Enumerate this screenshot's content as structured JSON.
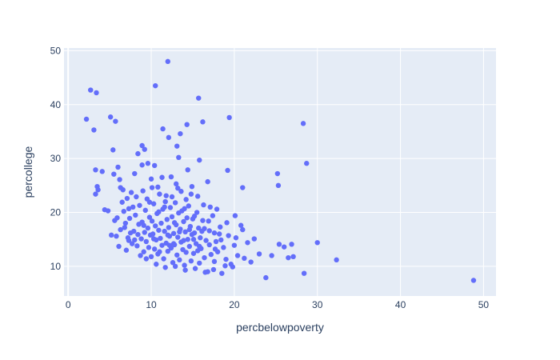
{
  "colors": {
    "background": "#ffffff",
    "plot_background": "#e5ecf6",
    "grid": "#ffffff",
    "marker": "#636efa",
    "text": "#2a3f5f"
  },
  "chart_data": {
    "type": "scatter",
    "xlabel": "percbelowpoverty",
    "ylabel": "percollege",
    "xlim": [
      -0.5,
      51.5
    ],
    "ylim": [
      4.5,
      50.5
    ],
    "xticks": [
      0,
      10,
      20,
      30,
      40,
      50
    ],
    "yticks": [
      10,
      20,
      30,
      40,
      50
    ],
    "grid": true,
    "legend": false,
    "series": [
      {
        "points": [
          [
            2.2,
            37.3
          ],
          [
            2.7,
            42.7
          ],
          [
            3.1,
            35.3
          ],
          [
            3.4,
            42.2
          ],
          [
            3.3,
            27.9
          ],
          [
            3.3,
            23.4
          ],
          [
            3.5,
            24.8
          ],
          [
            3.6,
            24.2
          ],
          [
            4.1,
            27.6
          ],
          [
            4.4,
            20.5
          ],
          [
            5.1,
            37.7
          ],
          [
            5.7,
            36.9
          ],
          [
            5.4,
            31.6
          ],
          [
            5.5,
            27.1
          ],
          [
            6.0,
            28.4
          ],
          [
            6.2,
            26.1
          ],
          [
            6.3,
            24.6
          ],
          [
            6.5,
            21.9
          ],
          [
            6.6,
            24.2
          ],
          [
            7.1,
            22.6
          ],
          [
            7.3,
            20.7
          ],
          [
            7.6,
            23.7
          ],
          [
            8.0,
            27.2
          ],
          [
            8.4,
            30.9
          ],
          [
            8.9,
            32.4
          ],
          [
            9.2,
            31.7
          ],
          [
            8.9,
            28.8
          ],
          [
            9.6,
            29.1
          ],
          [
            10.1,
            24.6
          ],
          [
            10.4,
            28.7
          ],
          [
            10.5,
            43.5
          ],
          [
            12.0,
            48.0
          ],
          [
            11.4,
            35.5
          ],
          [
            12.1,
            33.9
          ],
          [
            13.1,
            32.3
          ],
          [
            13.5,
            34.6
          ],
          [
            14.3,
            36.3
          ],
          [
            15.7,
            41.2
          ],
          [
            16.2,
            36.8
          ],
          [
            19.4,
            37.6
          ],
          [
            12.4,
            26.6
          ],
          [
            13.3,
            30.2
          ],
          [
            14.4,
            27.9
          ],
          [
            15.8,
            29.7
          ],
          [
            13.2,
            24.5
          ],
          [
            14.8,
            23.4
          ],
          [
            16.8,
            25.7
          ],
          [
            19.2,
            27.8
          ],
          [
            21.0,
            24.6
          ],
          [
            25.2,
            27.2
          ],
          [
            25.3,
            25.0
          ],
          [
            28.3,
            36.5
          ],
          [
            28.7,
            29.1
          ],
          [
            20.1,
            19.4
          ],
          [
            22.4,
            15.1
          ],
          [
            24.5,
            12.0
          ],
          [
            25.4,
            14.1
          ],
          [
            26.0,
            13.6
          ],
          [
            26.9,
            14.1
          ],
          [
            27.1,
            11.8
          ],
          [
            26.5,
            11.6
          ],
          [
            28.4,
            8.7
          ],
          [
            30.0,
            14.4
          ],
          [
            32.3,
            11.2
          ],
          [
            23.8,
            7.9
          ],
          [
            48.8,
            7.4
          ],
          [
            4.8,
            20.3
          ],
          [
            5.2,
            15.8
          ],
          [
            5.6,
            18.5
          ],
          [
            5.8,
            15.6
          ],
          [
            6.3,
            16.8
          ],
          [
            6.8,
            17.2
          ],
          [
            7.2,
            15.3
          ],
          [
            7.4,
            18.9
          ],
          [
            7.7,
            14.2
          ],
          [
            7.9,
            16.5
          ],
          [
            8.1,
            19.5
          ],
          [
            8.3,
            13.8
          ],
          [
            8.5,
            17.8
          ],
          [
            8.6,
            21.3
          ],
          [
            8.8,
            15.1
          ],
          [
            8.9,
            18.2
          ],
          [
            9.1,
            12.7
          ],
          [
            9.2,
            16.3
          ],
          [
            9.3,
            20.4
          ],
          [
            9.4,
            14.6
          ],
          [
            9.5,
            22.5
          ],
          [
            9.6,
            17.1
          ],
          [
            9.7,
            13.5
          ],
          [
            9.8,
            19.1
          ],
          [
            9.9,
            15.8
          ],
          [
            10.0,
            11.8
          ],
          [
            10.1,
            18.4
          ],
          [
            10.2,
            16.0
          ],
          [
            10.3,
            21.6
          ],
          [
            10.4,
            13.2
          ],
          [
            10.5,
            17.5
          ],
          [
            10.6,
            14.9
          ],
          [
            10.7,
            19.8
          ],
          [
            10.8,
            12.3
          ],
          [
            10.9,
            16.7
          ],
          [
            11.0,
            23.4
          ],
          [
            11.1,
            15.2
          ],
          [
            11.2,
            18.0
          ],
          [
            11.3,
            13.9
          ],
          [
            11.4,
            20.6
          ],
          [
            11.5,
            11.4
          ],
          [
            11.6,
            16.5
          ],
          [
            11.7,
            22.0
          ],
          [
            11.8,
            14.3
          ],
          [
            11.9,
            18.7
          ],
          [
            12.0,
            12.8
          ],
          [
            12.1,
            17.2
          ],
          [
            12.2,
            15.6
          ],
          [
            12.3,
            20.9
          ],
          [
            12.4,
            13.4
          ],
          [
            12.5,
            19.2
          ],
          [
            12.6,
            10.7
          ],
          [
            12.7,
            16.1
          ],
          [
            12.8,
            14.0
          ],
          [
            12.9,
            21.8
          ],
          [
            13.0,
            17.7
          ],
          [
            13.1,
            12.1
          ],
          [
            13.2,
            15.4
          ],
          [
            13.3,
            19.9
          ],
          [
            13.4,
            11.2
          ],
          [
            13.5,
            16.9
          ],
          [
            13.6,
            14.5
          ],
          [
            13.7,
            20.3
          ],
          [
            13.8,
            13.1
          ],
          [
            13.9,
            18.3
          ],
          [
            14.0,
            10.2
          ],
          [
            14.1,
            16.4
          ],
          [
            14.2,
            12.6
          ],
          [
            14.3,
            19.0
          ],
          [
            14.4,
            15.0
          ],
          [
            14.5,
            21.2
          ],
          [
            14.6,
            13.7
          ],
          [
            14.7,
            17.4
          ],
          [
            14.8,
            11.0
          ],
          [
            14.9,
            15.9
          ],
          [
            15.0,
            18.8
          ],
          [
            15.1,
            12.4
          ],
          [
            15.2,
            16.2
          ],
          [
            15.3,
            9.6
          ],
          [
            15.4,
            14.2
          ],
          [
            15.5,
            20.0
          ],
          [
            15.6,
            12.9
          ],
          [
            15.7,
            17.1
          ],
          [
            15.8,
            10.6
          ],
          [
            15.9,
            15.3
          ],
          [
            16.0,
            13.3
          ],
          [
            16.2,
            18.5
          ],
          [
            16.4,
            11.6
          ],
          [
            16.6,
            14.8
          ],
          [
            16.8,
            9.0
          ],
          [
            17.0,
            16.6
          ],
          [
            17.2,
            12.2
          ],
          [
            17.4,
            19.4
          ],
          [
            17.6,
            10.9
          ],
          [
            17.8,
            14.6
          ],
          [
            18.0,
            12.7
          ],
          [
            18.2,
            16.0
          ],
          [
            18.5,
            8.7
          ],
          [
            18.7,
            13.5
          ],
          [
            19.0,
            11.3
          ],
          [
            19.3,
            15.7
          ],
          [
            19.6,
            10.4
          ],
          [
            20.0,
            13.9
          ],
          [
            20.4,
            12.0
          ],
          [
            20.8,
            17.6
          ],
          [
            21.2,
            11.5
          ],
          [
            21.6,
            14.4
          ],
          [
            22.0,
            10.8
          ],
          [
            5.9,
            19.0
          ],
          [
            6.7,
            20.2
          ],
          [
            7.5,
            16.2
          ],
          [
            8.2,
            22.9
          ],
          [
            8.7,
            12.0
          ],
          [
            9.0,
            24.0
          ],
          [
            10.0,
            26.2
          ],
          [
            10.8,
            24.7
          ],
          [
            11.3,
            26.5
          ],
          [
            11.8,
            23.1
          ],
          [
            12.5,
            22.9
          ],
          [
            13.0,
            25.3
          ],
          [
            13.6,
            23.9
          ],
          [
            14.2,
            22.4
          ],
          [
            14.9,
            24.8
          ],
          [
            15.6,
            23.0
          ],
          [
            16.3,
            21.4
          ],
          [
            17.1,
            21.0
          ],
          [
            17.9,
            20.6
          ],
          [
            8.0,
            14.9
          ],
          [
            9.4,
            11.4
          ],
          [
            10.6,
            10.4
          ],
          [
            11.7,
            9.8
          ],
          [
            12.9,
            10.0
          ],
          [
            14.1,
            9.3
          ],
          [
            16.5,
            8.9
          ],
          [
            17.5,
            9.4
          ],
          [
            19.8,
            9.9
          ],
          [
            6.1,
            13.7
          ],
          [
            7.0,
            13.0
          ],
          [
            6.9,
            18.0
          ],
          [
            7.8,
            21.0
          ],
          [
            9.1,
            17.6
          ],
          [
            10.3,
            15.1
          ],
          [
            11.0,
            12.7
          ],
          [
            11.6,
            21.0
          ],
          [
            12.2,
            13.9
          ],
          [
            12.8,
            18.1
          ],
          [
            13.4,
            16.4
          ],
          [
            14.0,
            20.7
          ],
          [
            14.6,
            16.8
          ],
          [
            15.2,
            19.3
          ],
          [
            15.8,
            13.7
          ],
          [
            16.4,
            17.0
          ],
          [
            17.0,
            14.0
          ],
          [
            17.6,
            16.2
          ],
          [
            18.4,
            14.9
          ],
          [
            19.1,
            18.1
          ],
          [
            20.2,
            15.3
          ],
          [
            21.0,
            16.8
          ],
          [
            23.0,
            12.3
          ],
          [
            18.9,
            10.1
          ],
          [
            9.8,
            21.9
          ],
          [
            10.9,
            20.1
          ],
          [
            8.4,
            15.9
          ],
          [
            7.3,
            14.8
          ],
          [
            12.0,
            15.8
          ],
          [
            12.7,
            14.2
          ],
          [
            13.9,
            14.8
          ],
          [
            15.1,
            15.0
          ],
          [
            16.1,
            16.5
          ],
          [
            16.9,
            18.4
          ],
          [
            17.7,
            13.2
          ],
          [
            18.3,
            17.3
          ]
        ]
      }
    ]
  }
}
